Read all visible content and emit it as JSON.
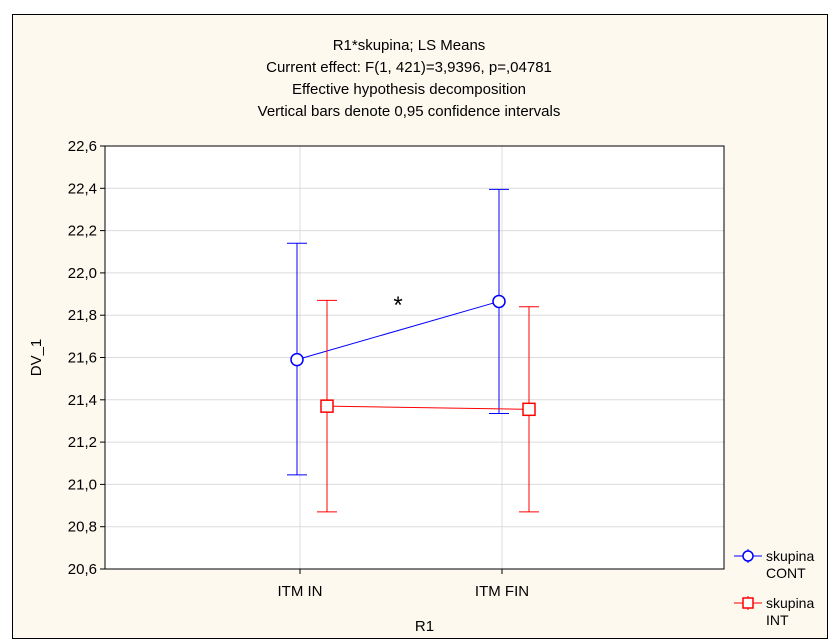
{
  "chart_data": {
    "type": "line",
    "title": [
      "R1*skupina; LS Means",
      "Current effect: F(1, 421)=3,9396, p=,04781",
      "Effective hypothesis decomposition",
      "Vertical bars denote 0,95 confidence intervals"
    ],
    "xlabel": "R1",
    "ylabel": "DV_1",
    "categories": [
      "ITM IN",
      "ITM FIN"
    ],
    "ylim": [
      20.6,
      22.6
    ],
    "yticks": [
      "20,6",
      "20,8",
      "21,0",
      "21,2",
      "21,4",
      "21,6",
      "21,8",
      "22,0",
      "22,2",
      "22,4",
      "22,6"
    ],
    "grid": true,
    "legend_position": "right-bottom, outside",
    "annotation": "*",
    "series": [
      {
        "name": [
          "skupina",
          "CONT"
        ],
        "color": "#0000ff",
        "marker": "circle",
        "values": [
          21.59,
          21.865
        ],
        "ci_low": [
          21.045,
          21.335
        ],
        "ci_high": [
          22.14,
          22.395
        ]
      },
      {
        "name": [
          "skupina",
          "INT"
        ],
        "color": "#ff0000",
        "marker": "square",
        "values": [
          21.37,
          21.355
        ],
        "ci_low": [
          20.87,
          20.87
        ],
        "ci_high": [
          21.87,
          21.84
        ]
      }
    ]
  }
}
